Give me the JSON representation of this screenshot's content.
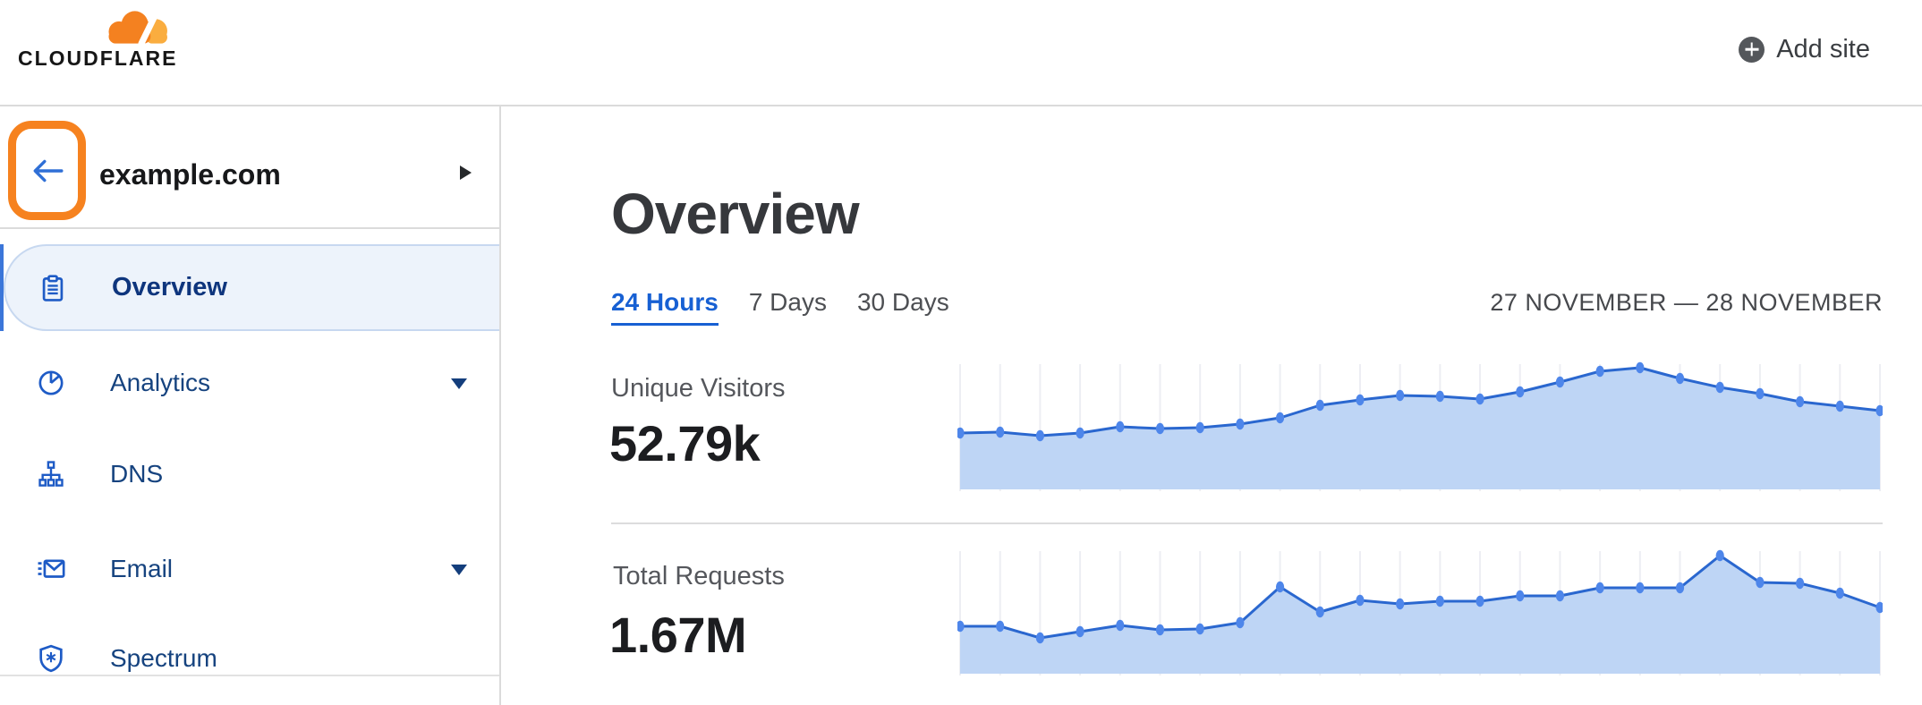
{
  "header": {
    "logo_text": "CLOUDFLARE",
    "add_site_label": "Add site"
  },
  "sidebar": {
    "site": {
      "name": "example.com"
    },
    "items": [
      {
        "label": "Overview",
        "icon": "clipboard-icon",
        "selected": true,
        "caret": false
      },
      {
        "label": "Analytics",
        "icon": "pie-chart-icon",
        "selected": false,
        "caret": true
      },
      {
        "label": "DNS",
        "icon": "sitemap-icon",
        "selected": false,
        "caret": false
      },
      {
        "label": "Email",
        "icon": "email-send-icon",
        "selected": false,
        "caret": true
      },
      {
        "label": "Spectrum",
        "icon": "shield-icon",
        "selected": false,
        "caret": false
      }
    ]
  },
  "main": {
    "title": "Overview",
    "tabs": [
      {
        "label": "24 Hours",
        "active": true
      },
      {
        "label": "7 Days",
        "active": false
      },
      {
        "label": "30 Days",
        "active": false
      }
    ],
    "date_range": "27 NOVEMBER — 28 NOVEMBER",
    "metrics": [
      {
        "label": "Unique Visitors",
        "value": "52.79k"
      },
      {
        "label": "Total Requests",
        "value": "1.67M"
      }
    ]
  },
  "colors": {
    "brand_orange": "#F6821F",
    "logo_orange": "#F48120",
    "logo_light_orange": "#FAAD3F",
    "link_blue": "#1760D3",
    "nav_navy": "#16437F",
    "chart_line": "#2A67CF",
    "chart_dot": "#4E86EA",
    "chart_fill": "#BED5F5",
    "chart_grid": "#EDEEF3",
    "selected_item_bg": "#EDF3FB",
    "selected_item_border": "#C7D8F0",
    "divider_gray": "#DBDBDB"
  },
  "chart_data": [
    {
      "type": "area",
      "title": "Unique Visitors",
      "total_label": "52.79k",
      "x": "24 hourly samples, 27 November — 28 November (24 Hours view, left to right)",
      "x_tick_labels": "none shown",
      "y_axis": "unlabeled, relative units estimated from pixel heights",
      "values": [
        63,
        64,
        60,
        63,
        70,
        68,
        69,
        73,
        80,
        94,
        100,
        105,
        104,
        101,
        109,
        120,
        132,
        136,
        124,
        114,
        107,
        98,
        93,
        88
      ],
      "grid": "vertical gridlines at each sample",
      "legend": "none",
      "markers": "dot at every sample"
    },
    {
      "type": "area",
      "title": "Total Requests",
      "total_label": "1.67M",
      "x": "24 hourly samples, 27 November — 28 November (24 Hours view, left to right)",
      "x_tick_labels": "none shown",
      "y_axis": "unlabeled, relative units estimated from pixel heights",
      "values": [
        53,
        53,
        40,
        47,
        54,
        49,
        50,
        57,
        97,
        69,
        82,
        78,
        81,
        81,
        87,
        87,
        96,
        96,
        96,
        132,
        102,
        101,
        90,
        74
      ],
      "grid": "vertical gridlines at each sample",
      "legend": "none",
      "markers": "dot at every sample"
    }
  ]
}
